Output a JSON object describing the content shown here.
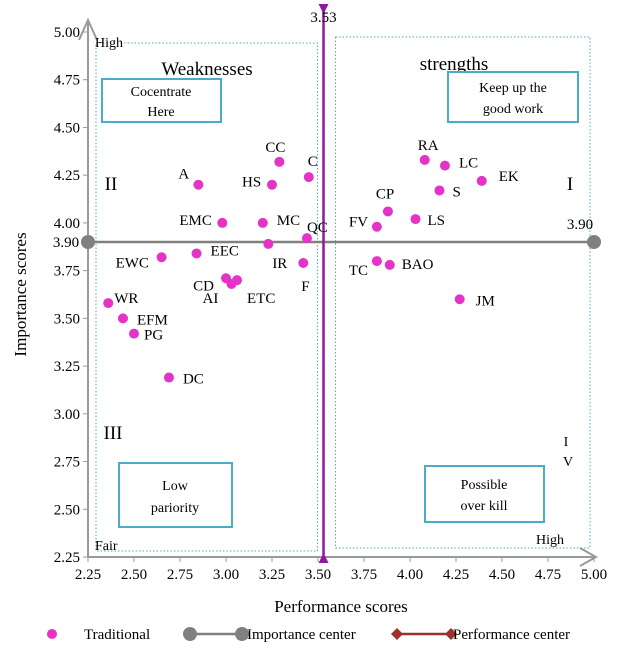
{
  "chart_data": {
    "type": "scatter",
    "xlabel": "Performance scores",
    "ylabel": "Importance scores",
    "xlim": [
      2.25,
      5.0
    ],
    "ylim": [
      2.25,
      5.0
    ],
    "xticks": [
      "2.25",
      "2.50",
      "2.75",
      "3.00",
      "3.25",
      "3.50",
      "3.75",
      "4.00",
      "4.25",
      "4.50",
      "4.75",
      "5.00"
    ],
    "yticks": [
      "2.25",
      "2.50",
      "2.75",
      "3.00",
      "3.25",
      "3.50",
      "3.75",
      "4.00",
      "4.25",
      "4.50",
      "4.75",
      "5.00"
    ],
    "grid": false,
    "performance_center": {
      "value": 3.53,
      "label": "3.53"
    },
    "importance_center": {
      "value": 3.9,
      "label_left": "3.90",
      "label_right": "3.90"
    },
    "corner_labels": {
      "high_top": "High",
      "fair": "Fair",
      "high_right": "High"
    },
    "quadrants": {
      "top_left_title": "Weaknesses",
      "top_right_title": "strengths",
      "roman_1": "I",
      "roman_2": "II",
      "roman_3": "III",
      "roman_4_line1": "I",
      "roman_4_line2": "V"
    },
    "boxes": {
      "concentrate": [
        "Cocentrate",
        "Here"
      ],
      "keep_up": [
        "Keep up the",
        "good work"
      ],
      "low_priority": [
        "Low",
        "pariority"
      ],
      "overkill": [
        "Possible",
        "over kill"
      ]
    },
    "series": [
      {
        "name": "Traditional",
        "color": "#e533c8",
        "points": [
          {
            "label": "CC",
            "x": 3.29,
            "y": 4.32
          },
          {
            "label": "C",
            "x": 3.45,
            "y": 4.24
          },
          {
            "label": "A",
            "x": 2.85,
            "y": 4.2
          },
          {
            "label": "HS",
            "x": 3.25,
            "y": 4.2
          },
          {
            "label": "EMC",
            "x": 2.98,
            "y": 4.0
          },
          {
            "label": "MC",
            "x": 3.2,
            "y": 4.0
          },
          {
            "label": "QC",
            "x": 3.44,
            "y": 3.92
          },
          {
            "label": "IR",
            "x": 3.23,
            "y": 3.89
          },
          {
            "label": "EEC",
            "x": 2.84,
            "y": 3.84
          },
          {
            "label": "EWC",
            "x": 2.65,
            "y": 3.82
          },
          {
            "label": "F",
            "x": 3.42,
            "y": 3.79
          },
          {
            "label": "CD",
            "x": 3.0,
            "y": 3.71
          },
          {
            "label": "ETC",
            "x": 3.06,
            "y": 3.7
          },
          {
            "label": "AI",
            "x": 3.03,
            "y": 3.68
          },
          {
            "label": "WR",
            "x": 2.36,
            "y": 3.58
          },
          {
            "label": "EFM",
            "x": 2.44,
            "y": 3.5
          },
          {
            "label": "PG",
            "x": 2.5,
            "y": 3.42
          },
          {
            "label": "DC",
            "x": 2.69,
            "y": 3.19
          },
          {
            "label": "RA",
            "x": 4.08,
            "y": 4.33
          },
          {
            "label": "LC",
            "x": 4.19,
            "y": 4.3
          },
          {
            "label": "EK",
            "x": 4.39,
            "y": 4.22
          },
          {
            "label": "S",
            "x": 4.16,
            "y": 4.17
          },
          {
            "label": "CP",
            "x": 3.88,
            "y": 4.06
          },
          {
            "label": "LS",
            "x": 4.03,
            "y": 4.02
          },
          {
            "label": "FV",
            "x": 3.82,
            "y": 3.98
          },
          {
            "label": "TC",
            "x": 3.82,
            "y": 3.8
          },
          {
            "label": "BAO",
            "x": 3.89,
            "y": 3.78
          },
          {
            "label": "JM",
            "x": 4.27,
            "y": 3.6
          }
        ]
      },
      {
        "name": "Importance center",
        "color": "#808080"
      },
      {
        "name": "Performance center",
        "color": "#a0302e"
      }
    ],
    "legend": {
      "position": "bottom",
      "entries": [
        "Traditional",
        "Importance center",
        "Performance center"
      ]
    }
  }
}
